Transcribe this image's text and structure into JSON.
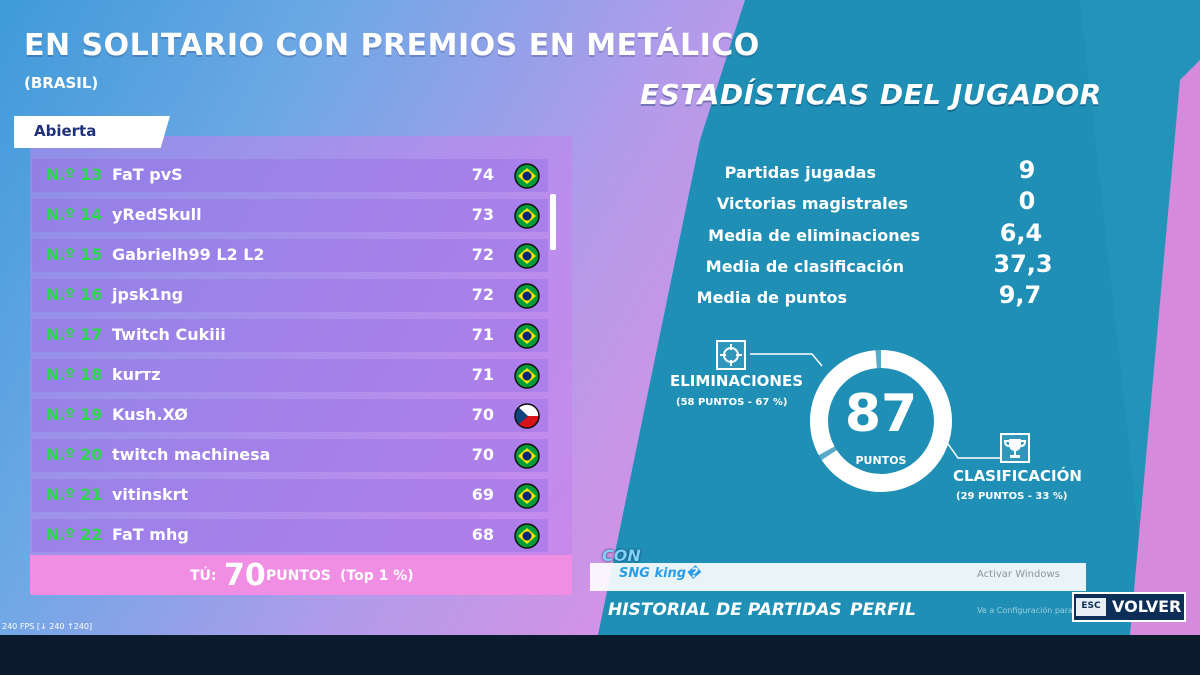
{
  "header": {
    "title": "EN SOLITARIO CON PREMIOS EN METÁLICO",
    "subtitle": "(BRASIL)"
  },
  "leaderboard": {
    "tab_label": "Abierta",
    "rows": [
      {
        "rank": "N.º 13",
        "name": "FaT pvS",
        "points": "74",
        "flag": "brazil"
      },
      {
        "rank": "N.º 14",
        "name": "yRedSkull",
        "points": "73",
        "flag": "brazil"
      },
      {
        "rank": "N.º 15",
        "name": "Gabrielh99 L2 L2",
        "points": "72",
        "flag": "brazil"
      },
      {
        "rank": "N.º 16",
        "name": "jpsk1ng",
        "points": "72",
        "flag": "brazil"
      },
      {
        "rank": "N.º 17",
        "name": "Twitch Cukiii",
        "points": "71",
        "flag": "brazil"
      },
      {
        "rank": "N.º 18",
        "name": "kurтz",
        "points": "71",
        "flag": "brazil"
      },
      {
        "rank": "N.º 19",
        "name": "Kush.XØ",
        "points": "70",
        "flag": "czech"
      },
      {
        "rank": "N.º 20",
        "name": "twitch machinesa",
        "points": "70",
        "flag": "brazil"
      },
      {
        "rank": "N.º 21",
        "name": "vitinskrt",
        "points": "69",
        "flag": "brazil"
      },
      {
        "rank": "N.º 22",
        "name": "FaT mhg",
        "points": "68",
        "flag": "brazil"
      }
    ],
    "you": {
      "label": "TÚ:",
      "value": "70",
      "unit": "PUNTOS",
      "top": "(Top 1 %)"
    }
  },
  "stats": {
    "title": "ESTADÍSTICAS DEL JUGADOR",
    "items": [
      {
        "label": "Partidas jugadas",
        "value": "9"
      },
      {
        "label": "Victorias magistrales",
        "value": "0"
      },
      {
        "label": "Media de eliminaciones",
        "value": "6,4"
      },
      {
        "label": "Media de clasificación",
        "value": "37,3"
      },
      {
        "label": "Media de puntos",
        "value": "9,7"
      }
    ],
    "total": {
      "value": "87",
      "unit": "PUNTOS",
      "eliminations_fraction": 0.67
    },
    "eliminations": {
      "label": "ELIMINACIONES",
      "sub": "(58 PUNTOS - 67 %)",
      "icon": "crosshair-icon"
    },
    "placement": {
      "label": "CLASIFICACIÓN",
      "sub": "(29 PUNTOS - 33 %)",
      "icon": "trophy-icon"
    }
  },
  "connection": {
    "label": "CON",
    "player_name": "SNG king�"
  },
  "menu": {
    "history": "HISTORIAL DE PARTIDAS",
    "profile": "PERFIL",
    "esc_key": "ESC",
    "back": "VOLVER"
  },
  "watermark": {
    "title": "Activar Windows",
    "subtitle": "Ve a Configuración para activar Windows."
  },
  "overlay": {
    "fps": "240 FPS [↓ 240 ↑240]"
  },
  "colors": {
    "rank_green": "#2bd94b",
    "teal_panel": "#1f8fb6",
    "back_button": "#0d2e57"
  }
}
